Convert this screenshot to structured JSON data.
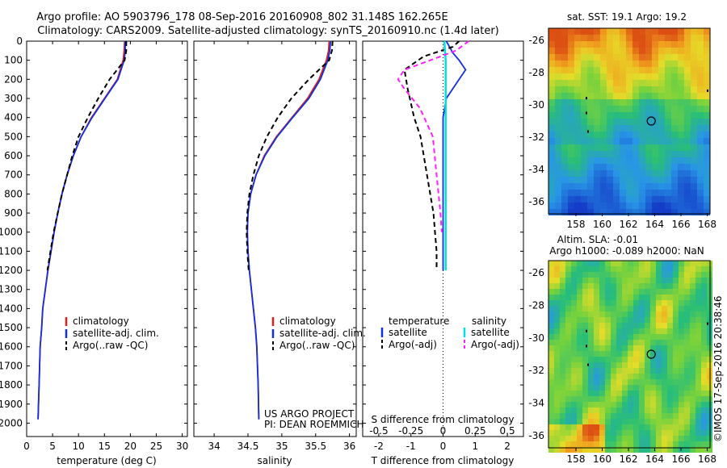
{
  "header": {
    "line1": "Argo profile: AO 5903796_178 08-Sep-2016 20160908_802 31.148S 162.265E",
    "line2": "Climatology: CARS2009. Satellite-adjusted climatology: synTS_20160910.nc (1.4d later)"
  },
  "colors": {
    "climatology": "#e0201a",
    "satellite_adj": "#1030e0",
    "argo": "#000000",
    "salinity_satellite": "#00e0e0",
    "salinity_argo": "#ff20ff"
  },
  "depth_axis": {
    "ticks": [
      0,
      100,
      200,
      300,
      400,
      500,
      600,
      700,
      800,
      900,
      1000,
      1100,
      1200,
      1300,
      1400,
      1500,
      1600,
      1700,
      1800,
      1900,
      2000
    ],
    "ylim": [
      2070,
      0
    ]
  },
  "legend_profiles": {
    "items": [
      "climatology",
      "satellite-adj. clim.",
      "Argo(..raw -QC)"
    ]
  },
  "credits": {
    "line1": "US ARGO PROJECT",
    "line2": "PI: DEAN ROEMMICH",
    "imos": "©IMOS 17-Sep-2016 20:38:46"
  },
  "legend_diff": {
    "temp_title": "temperature",
    "sal_title": "salinity",
    "temp_items": [
      "satellite",
      "Argo(-adj)"
    ],
    "sal_items": [
      "satellite",
      "Argo(-adj)"
    ]
  },
  "maps": {
    "sst_title": "sat. SST: 19.1  Argo: 19.2",
    "sla_title1": "Altim. SLA: -0.01",
    "sla_title2": "Argo h1000: -0.089  h2000: NaN",
    "lat_ticks": [
      "-26",
      "-28",
      "-30",
      "-32",
      "-34",
      "-36"
    ],
    "lon_ticks": [
      "158",
      "160",
      "162",
      "164",
      "166",
      "168"
    ]
  },
  "chart_data": [
    {
      "type": "line",
      "panel": "temperature",
      "xlabel": "temperature (deg C)",
      "xlim": [
        0,
        31
      ],
      "xticks": [
        0,
        5,
        10,
        15,
        20,
        25,
        30
      ],
      "y_axis": "depth (dbar), inverted",
      "series": [
        {
          "name": "climatology",
          "x": [
            18.9,
            18.8,
            18.6,
            17.5,
            15.0,
            12.5,
            10.5,
            9.0,
            7.8,
            6.8,
            6.0,
            5.3,
            4.7,
            4.1,
            3.6,
            3.1,
            2.9,
            2.6,
            2.4,
            2.2
          ],
          "y": [
            0,
            50,
            100,
            200,
            300,
            400,
            500,
            600,
            700,
            800,
            900,
            1000,
            1100,
            1200,
            1300,
            1400,
            1500,
            1600,
            1800,
            1980
          ]
        },
        {
          "name": "satellite-adj. clim.",
          "x": [
            19.0,
            19.0,
            18.8,
            17.6,
            15.1,
            12.6,
            10.5,
            9.0,
            7.8,
            6.8,
            6.0,
            5.3,
            4.7,
            4.1,
            3.6,
            3.1,
            2.9,
            2.6,
            2.4,
            2.2
          ],
          "y": [
            0,
            50,
            100,
            200,
            300,
            400,
            500,
            600,
            700,
            800,
            900,
            1000,
            1100,
            1200,
            1300,
            1400,
            1500,
            1600,
            1800,
            1980
          ]
        },
        {
          "name": "Argo(..raw -QC)",
          "x": [
            19.2,
            19.2,
            18.9,
            16.0,
            13.8,
            11.8,
            10.0,
            8.8,
            7.8,
            6.8,
            6.0,
            5.2,
            4.6,
            4.0
          ],
          "y": [
            0,
            50,
            100,
            200,
            300,
            400,
            500,
            600,
            700,
            800,
            900,
            1000,
            1100,
            1200
          ]
        }
      ]
    },
    {
      "type": "line",
      "panel": "salinity",
      "xlabel": "salinity",
      "xlim": [
        33.7,
        36.1
      ],
      "xticks": [
        34,
        34.5,
        35,
        35.5,
        36
      ],
      "y_axis": "depth (dbar), inverted",
      "series": [
        {
          "name": "climatology",
          "x": [
            35.7,
            35.69,
            35.66,
            35.55,
            35.38,
            35.15,
            34.92,
            34.74,
            34.62,
            34.54,
            34.5,
            34.49,
            34.5,
            34.52,
            34.55,
            34.58,
            34.61,
            34.63,
            34.65,
            34.66
          ],
          "y": [
            0,
            50,
            100,
            200,
            300,
            400,
            500,
            600,
            700,
            800,
            900,
            1000,
            1100,
            1200,
            1300,
            1400,
            1500,
            1600,
            1800,
            1980
          ]
        },
        {
          "name": "satellite-adj. clim.",
          "x": [
            35.72,
            35.71,
            35.68,
            35.57,
            35.4,
            35.16,
            34.93,
            34.75,
            34.62,
            34.54,
            34.5,
            34.49,
            34.5,
            34.52,
            34.55,
            34.58,
            34.61,
            34.63,
            34.65,
            34.66
          ],
          "y": [
            0,
            50,
            100,
            200,
            300,
            400,
            500,
            600,
            700,
            800,
            900,
            1000,
            1100,
            1200,
            1300,
            1400,
            1500,
            1600,
            1800,
            1980
          ]
        },
        {
          "name": "Argo(..raw -QC)",
          "x": [
            35.75,
            35.74,
            35.7,
            35.4,
            35.14,
            34.94,
            34.78,
            34.66,
            34.58,
            34.52,
            34.49,
            34.48,
            34.49,
            34.51
          ],
          "y": [
            0,
            50,
            100,
            200,
            300,
            400,
            500,
            600,
            700,
            800,
            900,
            1000,
            1100,
            1200
          ]
        }
      ]
    },
    {
      "type": "line",
      "panel": "difference",
      "xlabel_top": "S difference from climatology",
      "xlabel": "T difference from climatology",
      "xlim": [
        -2.5,
        2.5
      ],
      "xticks": [
        -2,
        -1,
        0,
        1,
        2
      ],
      "xticks_top": [
        "-0.5",
        "-0.25",
        "0",
        "0.25",
        "0.5"
      ],
      "y_axis": "depth (dbar), inverted",
      "series": [
        {
          "name": "satellite",
          "group": "temperature",
          "x": [
            0.1,
            0.2,
            0.3,
            0.5,
            0.7,
            0.5,
            0.1,
            0.0,
            0.0,
            0.0,
            0.0,
            0.0,
            0.0,
            0.0
          ],
          "y": [
            0,
            30,
            60,
            100,
            150,
            200,
            300,
            400,
            500,
            600,
            800,
            1000,
            1100,
            1200
          ]
        },
        {
          "name": "Argo(-adj)",
          "group": "temperature",
          "x": [
            0.5,
            0.3,
            -0.6,
            -1.2,
            -1.1,
            -0.9,
            -0.7,
            -0.6,
            -0.5,
            -0.4,
            -0.3,
            -0.25,
            -0.2,
            -0.2
          ],
          "y": [
            0,
            30,
            80,
            150,
            250,
            400,
            500,
            600,
            700,
            800,
            900,
            1000,
            1100,
            1200
          ]
        },
        {
          "name": "satellite",
          "group": "salinity",
          "x": [
            0.01,
            0.02,
            0.02,
            0.02,
            0.02,
            0.02,
            0.02,
            0.02,
            0.02,
            0.02
          ],
          "y": [
            0,
            100,
            200,
            300,
            400,
            600,
            800,
            1000,
            1100,
            1200
          ]
        },
        {
          "name": "Argo(-adj)",
          "group": "salinity",
          "x": [
            0.2,
            0.1,
            -0.1,
            -0.3,
            -0.35,
            -0.3,
            -0.18,
            -0.08,
            -0.05,
            -0.02,
            -0.01
          ],
          "y": [
            0,
            50,
            100,
            150,
            200,
            250,
            350,
            500,
            700,
            900,
            1000
          ]
        }
      ]
    }
  ]
}
